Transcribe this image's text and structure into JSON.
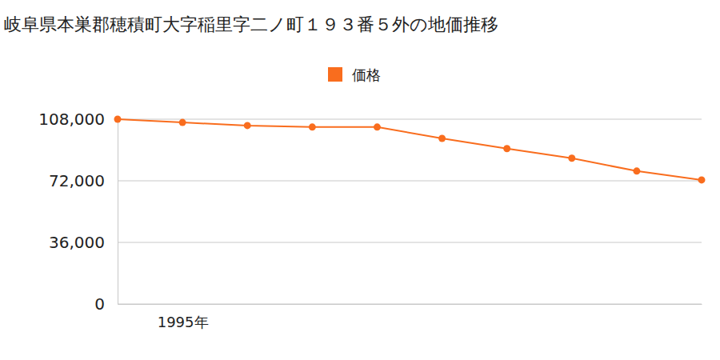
{
  "chart_data": {
    "type": "line",
    "title": "岐阜県本巣郡穂積町大字稲里字二ノ町１９３番５外の地価推移",
    "categories": [
      null,
      "1995年",
      null,
      null,
      null,
      null,
      null,
      null,
      null,
      null
    ],
    "series": [
      {
        "name": "価格",
        "color": "#f96d1e",
        "marker": "circle",
        "values": [
          108000,
          106100,
          104300,
          103400,
          103400,
          96800,
          90800,
          85200,
          77700,
          72500
        ]
      }
    ],
    "ylim": [
      0,
      108000
    ],
    "yticks": [
      0,
      {
        "value": 36000,
        "label": "36,000"
      },
      {
        "value": 72000,
        "label": "72,000"
      },
      {
        "value": 108000,
        "label": "108,000"
      }
    ],
    "grid": true,
    "legend": "top"
  }
}
